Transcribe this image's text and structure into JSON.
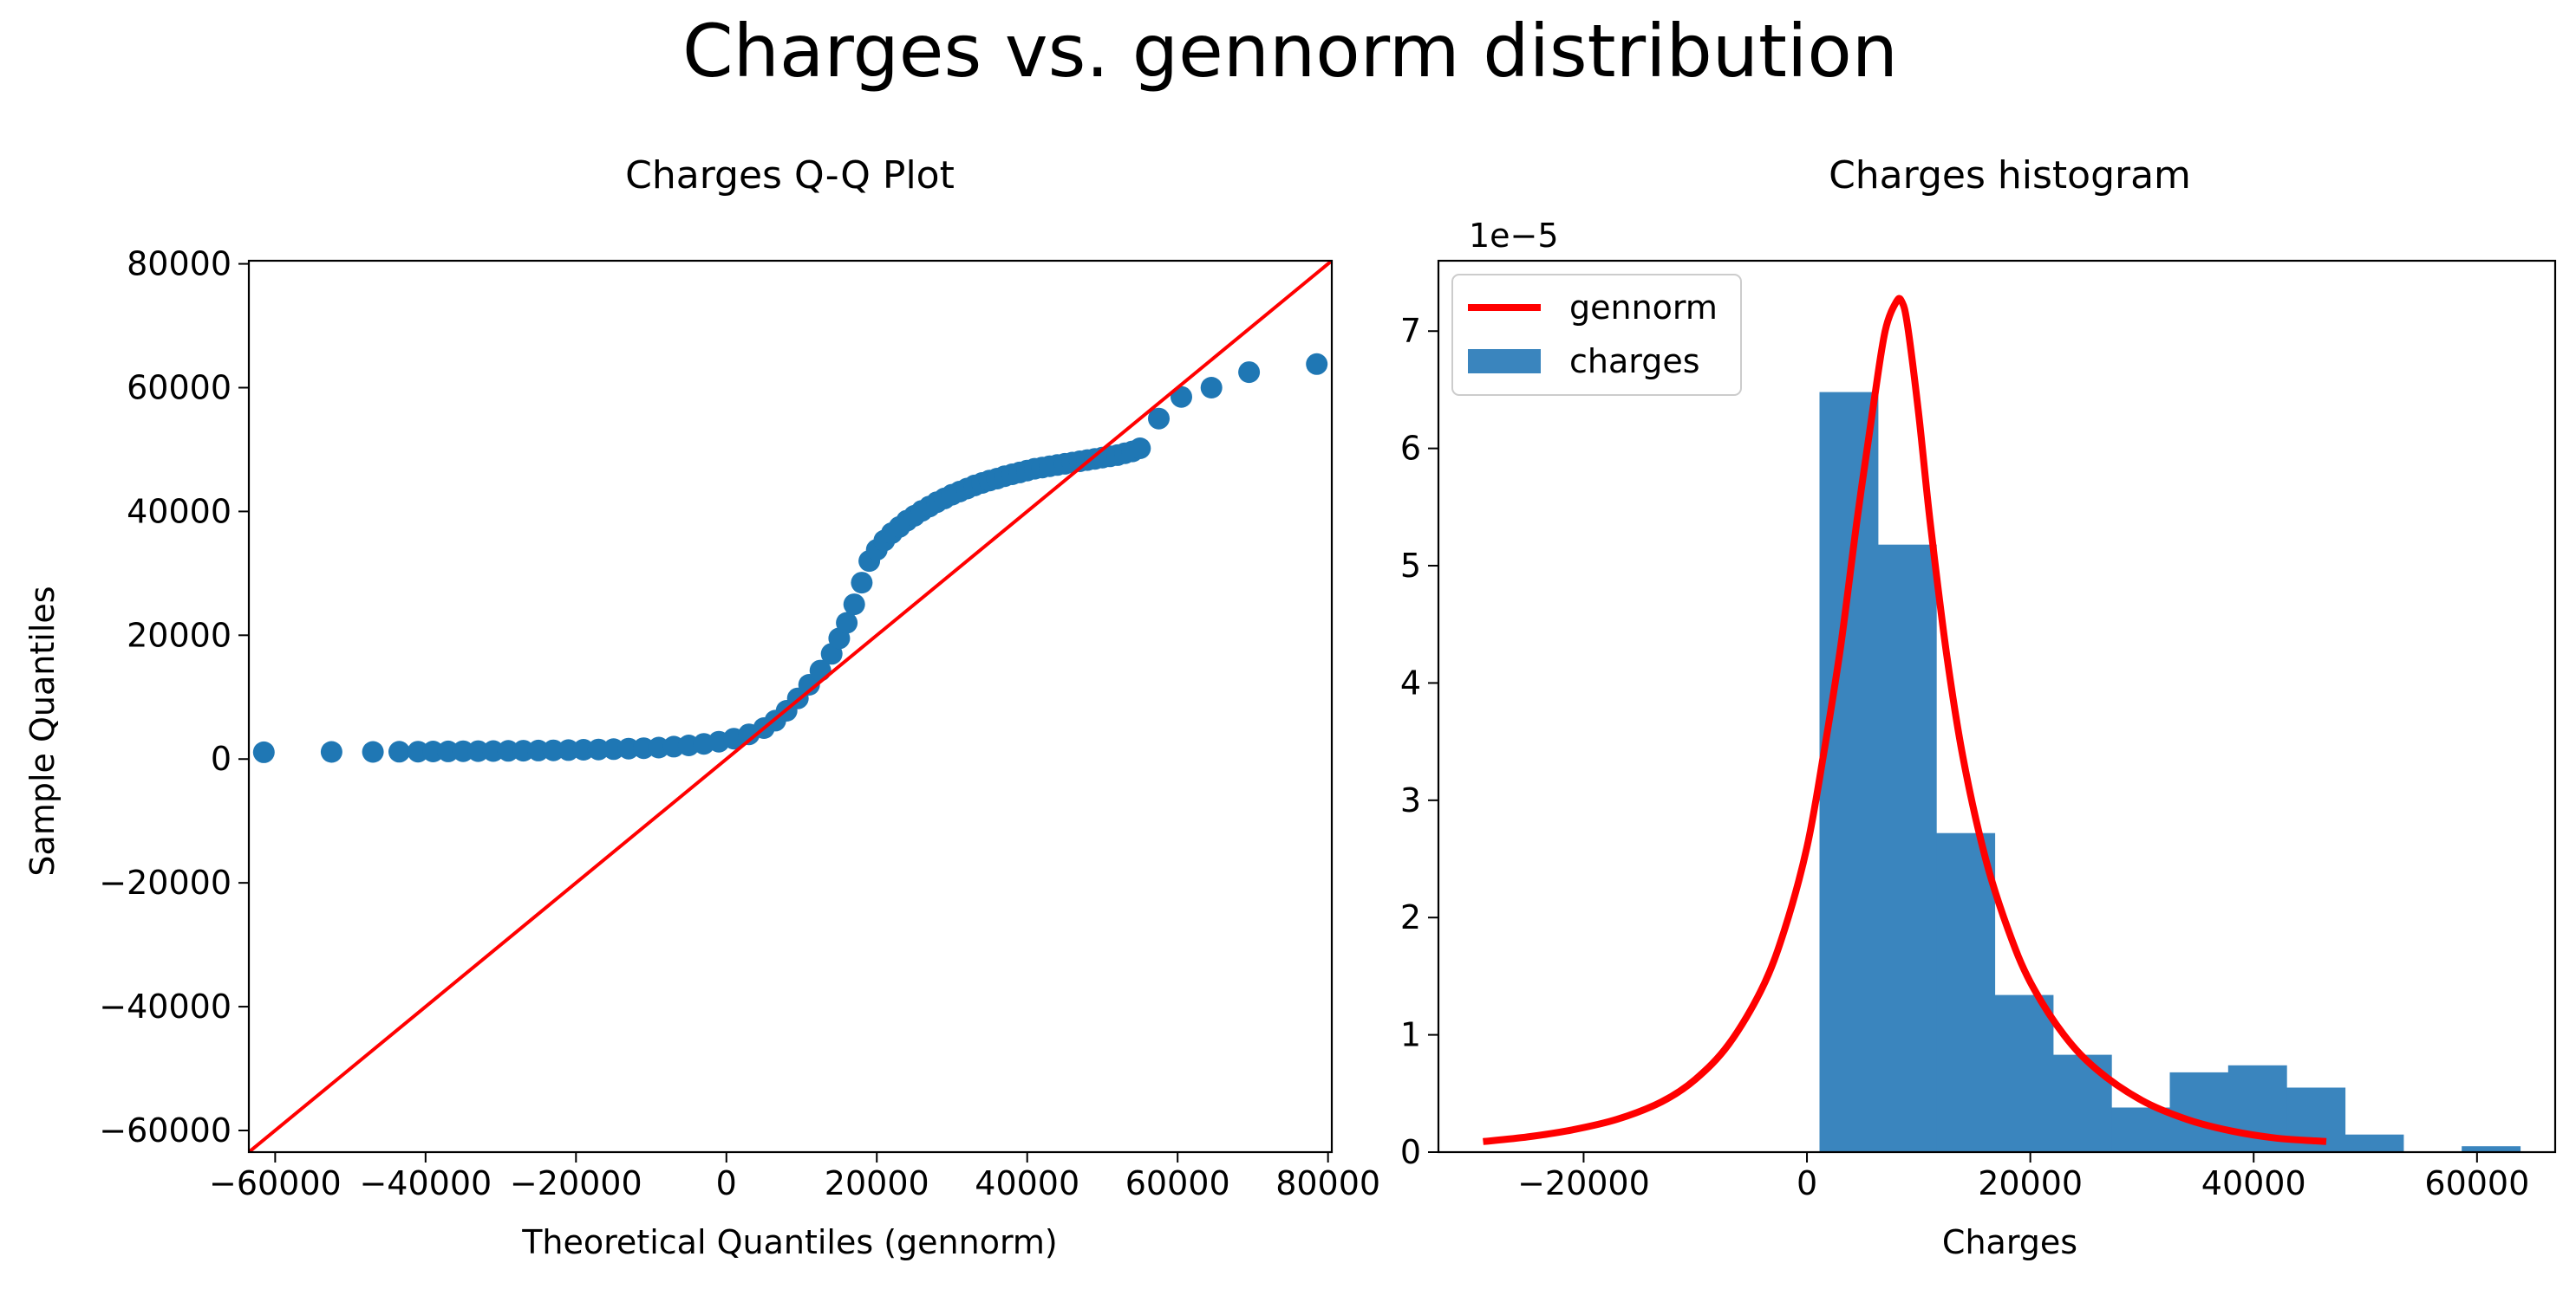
{
  "suptitle": "Charges vs. gennorm distribution",
  "chart_data": [
    {
      "type": "scatter",
      "title": "Charges Q-Q Plot",
      "xlabel": "Theoretical Quantiles (gennorm)",
      "ylabel": "Sample Quantiles",
      "xlim": [
        -63500,
        80500
      ],
      "ylim": [
        -63500,
        80500
      ],
      "xticks": [
        -60000,
        -40000,
        -20000,
        0,
        20000,
        40000,
        60000,
        80000
      ],
      "xtick_labels": [
        "−60000",
        "−40000",
        "−20000",
        "0",
        "20000",
        "40000",
        "60000",
        "80000"
      ],
      "yticks": [
        -60000,
        -40000,
        -20000,
        0,
        20000,
        40000,
        60000,
        80000
      ],
      "ytick_labels": [
        "−60000",
        "−40000",
        "−20000",
        "0",
        "20000",
        "40000",
        "60000",
        "80000"
      ],
      "grid": false,
      "marker_color": "#1f77b4",
      "line_color": "#ff0000",
      "reference_line": {
        "x": [
          -63500,
          80500
        ],
        "y": [
          -63500,
          80500
        ]
      },
      "points": {
        "x": [
          -61500,
          -52500,
          -47000,
          -43500,
          -41000,
          -39000,
          -37000,
          -35000,
          -33000,
          -31000,
          -29000,
          -27000,
          -25000,
          -23000,
          -21000,
          -19000,
          -17000,
          -15000,
          -13000,
          -11000,
          -9000,
          -7000,
          -5000,
          -3000,
          -1000,
          1000,
          3000,
          5000,
          6500,
          8000,
          9500,
          11000,
          12500,
          14000,
          15000,
          16000,
          17000,
          18000,
          19000,
          20000,
          21000,
          22000,
          23000,
          24000,
          25000,
          26000,
          27000,
          28000,
          29000,
          30000,
          31000,
          32000,
          33000,
          34000,
          35000,
          36000,
          37000,
          38000,
          39000,
          40000,
          41000,
          42000,
          43000,
          44000,
          45000,
          46000,
          47000,
          48000,
          49000,
          50000,
          51000,
          52000,
          53000,
          54000,
          55000,
          57500,
          60500,
          64500,
          69500,
          78500
        ],
        "y": [
          1100,
          1150,
          1150,
          1180,
          1200,
          1220,
          1240,
          1260,
          1280,
          1300,
          1320,
          1350,
          1380,
          1400,
          1450,
          1500,
          1550,
          1600,
          1680,
          1750,
          1850,
          2000,
          2200,
          2450,
          2800,
          3300,
          4000,
          5000,
          6200,
          7800,
          9800,
          12000,
          14300,
          17000,
          19500,
          22000,
          25000,
          28500,
          32000,
          33800,
          35300,
          36500,
          37500,
          38500,
          39300,
          40100,
          40800,
          41500,
          42100,
          42700,
          43200,
          43700,
          44200,
          44600,
          45000,
          45300,
          45700,
          46000,
          46300,
          46600,
          46900,
          47100,
          47300,
          47500,
          47700,
          47900,
          48100,
          48300,
          48500,
          48700,
          48900,
          49100,
          49400,
          49700,
          50200,
          55000,
          58500,
          60000,
          62500,
          63800
        ]
      }
    },
    {
      "type": "bar",
      "title": "Charges histogram",
      "xlabel": "Charges",
      "ylabel": "",
      "offset_label": "1e−5",
      "xlim": [
        -33000,
        67000
      ],
      "ylim": [
        0,
        7.6
      ],
      "xticks": [
        -20000,
        0,
        20000,
        40000,
        60000
      ],
      "xtick_labels": [
        "−20000",
        "0",
        "20000",
        "40000",
        "60000"
      ],
      "yticks": [
        0,
        1,
        2,
        3,
        4,
        5,
        6,
        7
      ],
      "ytick_labels": [
        "0",
        "1",
        "2",
        "3",
        "4",
        "5",
        "6",
        "7"
      ],
      "grid": false,
      "legend_position": "upper-left",
      "bar_color": "#3a85be",
      "line_color": "#ff0000",
      "bins": {
        "edges": [
          1122,
          6350,
          11578,
          16806,
          22034,
          27262,
          32490,
          37718,
          42946,
          48174,
          53402,
          58630,
          63858
        ],
        "heights": [
          6.48,
          5.18,
          2.72,
          1.34,
          0.83,
          0.38,
          0.68,
          0.74,
          0.55,
          0.15,
          0.0,
          0.05
        ]
      },
      "series": [
        {
          "name": "gennorm",
          "kind": "line",
          "color": "#ff0000"
        },
        {
          "name": "charges",
          "kind": "bar",
          "color": "#3a85be"
        }
      ],
      "curve": {
        "x": [
          -29000,
          -25000,
          -21000,
          -17000,
          -13000,
          -10000,
          -7000,
          -4000,
          -2000,
          0,
          1500,
          3000,
          4500,
          6000,
          7000,
          8000,
          8500,
          9000,
          10000,
          11000,
          12500,
          14000,
          16000,
          18000,
          20000,
          23000,
          26000,
          30000,
          34000,
          38000,
          42000,
          46500
        ],
        "y": [
          0.09,
          0.13,
          0.19,
          0.28,
          0.43,
          0.62,
          0.92,
          1.4,
          1.9,
          2.6,
          3.4,
          4.3,
          5.4,
          6.4,
          7.0,
          7.25,
          7.25,
          7.05,
          6.3,
          5.4,
          4.25,
          3.35,
          2.5,
          1.9,
          1.45,
          1.0,
          0.7,
          0.44,
          0.28,
          0.18,
          0.12,
          0.09
        ]
      }
    }
  ]
}
